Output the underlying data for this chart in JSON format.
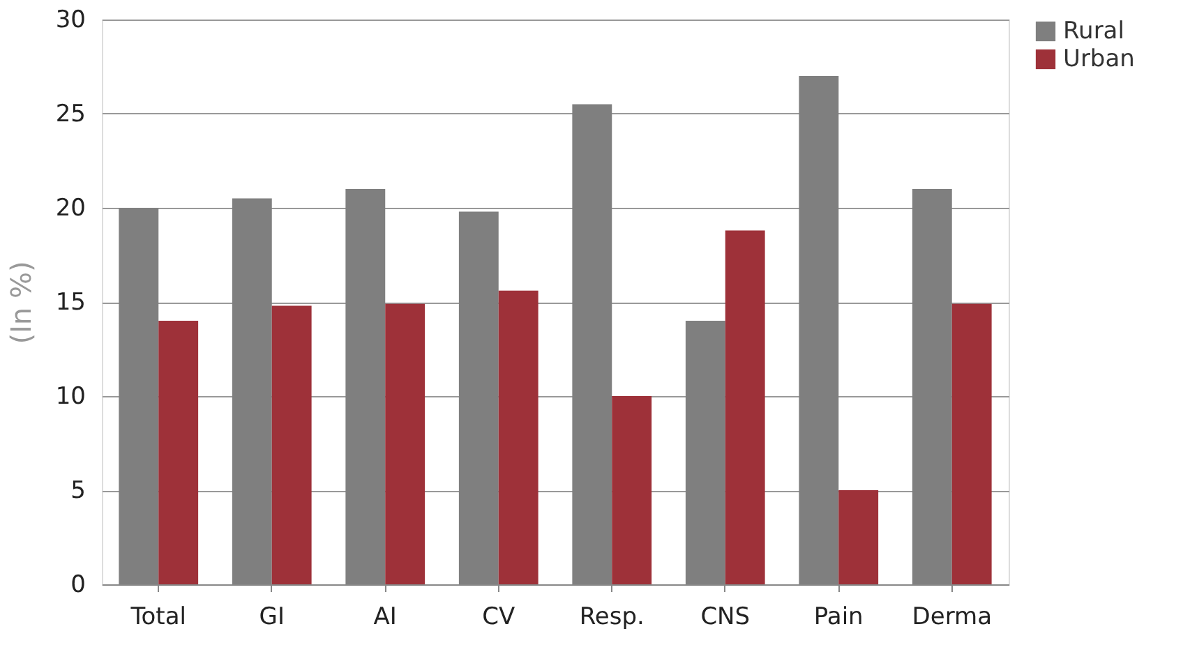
{
  "chart_data": {
    "type": "bar",
    "ylabel": "(In %)",
    "categories": [
      "Total",
      "GI",
      "AI",
      "CV",
      "Resp.",
      "CNS",
      "Pain",
      "Derma"
    ],
    "series": [
      {
        "name": "Rural",
        "color": "#7f7f7f",
        "values": [
          20,
          20.5,
          21,
          19.8,
          25.5,
          14,
          27,
          21
        ]
      },
      {
        "name": "Urban",
        "color": "#9e3139",
        "values": [
          14,
          14.8,
          14.9,
          15.6,
          10,
          18.8,
          5,
          14.9
        ]
      }
    ],
    "ylim": [
      0,
      30
    ],
    "yticks": [
      0,
      5,
      10,
      15,
      20,
      25,
      30
    ],
    "grid": "y",
    "legend": "right"
  }
}
